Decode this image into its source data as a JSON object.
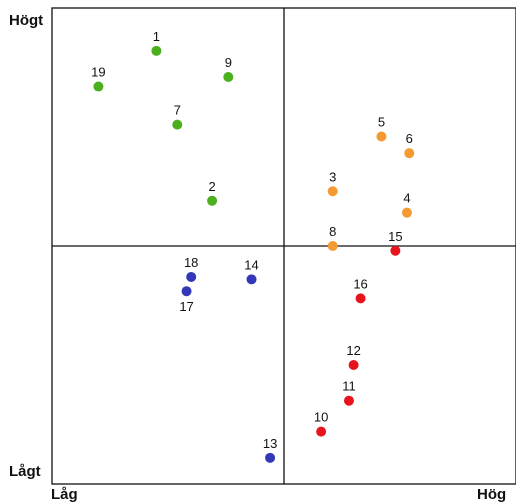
{
  "chart_data": {
    "type": "scatter",
    "y_top_label": "Högt",
    "y_bottom_label": "Lågt",
    "x_left_label": "Låg",
    "x_right_label": "Hög",
    "xlim": [
      0,
      10
    ],
    "ylim": [
      0,
      10
    ],
    "x_divider": 5,
    "y_divider": 5,
    "colors": {
      "green": "#4caf1e",
      "orange": "#f39a32",
      "blue": "#3238b8",
      "red": "#e8141c"
    },
    "points": [
      {
        "label": "1",
        "x": 2.25,
        "y": 9.1,
        "color": "green",
        "label_pos": "above"
      },
      {
        "label": "19",
        "x": 1.0,
        "y": 8.35,
        "color": "green",
        "label_pos": "above"
      },
      {
        "label": "9",
        "x": 3.8,
        "y": 8.55,
        "color": "green",
        "label_pos": "above"
      },
      {
        "label": "7",
        "x": 2.7,
        "y": 7.55,
        "color": "green",
        "label_pos": "above"
      },
      {
        "label": "2",
        "x": 3.45,
        "y": 5.95,
        "color": "green",
        "label_pos": "above"
      },
      {
        "label": "5",
        "x": 7.1,
        "y": 7.3,
        "color": "orange",
        "label_pos": "above"
      },
      {
        "label": "6",
        "x": 7.7,
        "y": 6.95,
        "color": "orange",
        "label_pos": "above"
      },
      {
        "label": "3",
        "x": 6.05,
        "y": 6.15,
        "color": "orange",
        "label_pos": "above"
      },
      {
        "label": "4",
        "x": 7.65,
        "y": 5.7,
        "color": "orange",
        "label_pos": "above"
      },
      {
        "label": "8",
        "x": 6.05,
        "y": 5.0,
        "color": "orange",
        "label_pos": "above"
      },
      {
        "label": "15",
        "x": 7.4,
        "y": 4.9,
        "color": "red",
        "label_pos": "above"
      },
      {
        "label": "16",
        "x": 6.65,
        "y": 3.9,
        "color": "red",
        "label_pos": "above"
      },
      {
        "label": "12",
        "x": 6.5,
        "y": 2.5,
        "color": "red",
        "label_pos": "above"
      },
      {
        "label": "11",
        "x": 6.4,
        "y": 1.75,
        "color": "red",
        "label_pos": "above"
      },
      {
        "label": "10",
        "x": 5.8,
        "y": 1.1,
        "color": "red",
        "label_pos": "above"
      },
      {
        "label": "18",
        "x": 3.0,
        "y": 4.35,
        "color": "blue",
        "label_pos": "above"
      },
      {
        "label": "17",
        "x": 2.9,
        "y": 4.05,
        "color": "blue",
        "label_pos": "below"
      },
      {
        "label": "14",
        "x": 4.3,
        "y": 4.3,
        "color": "blue",
        "label_pos": "above"
      },
      {
        "label": "13",
        "x": 4.7,
        "y": 0.55,
        "color": "blue",
        "label_pos": "above"
      }
    ]
  }
}
